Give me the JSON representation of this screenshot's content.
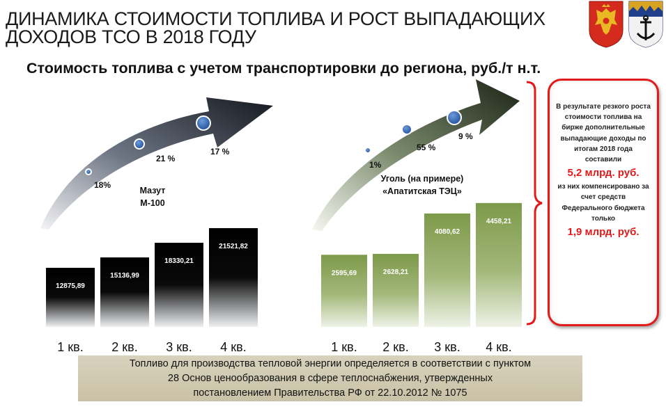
{
  "header": {
    "title_line1": "ДИНАМИКА СТОИМОСТИ ТОПЛИВА И РОСТ ВЫПАДАЮЩИХ",
    "title_line2": "ДОХОДОВ ТСО В 2018 ГОДУ",
    "subtitle": "Стоимость топлива с учетом транспортировки до региона, руб./т н.т."
  },
  "emblems": [
    "russia-coat-of-arms",
    "murmansk-oblast-coat-of-arms"
  ],
  "colors": {
    "accent_red": "#e21a1a",
    "navy": "#1f3f73",
    "green": "#7d9a4a",
    "footer_bg": "#d3ccb4"
  },
  "chart_data": [
    {
      "type": "bar",
      "title": "",
      "series_label_line1": "Мазут",
      "series_label_line2": "М-100",
      "categories": [
        "1 кв.",
        "2 кв.",
        "3 кв.",
        "4 кв."
      ],
      "values": [
        12875.89,
        15136.99,
        18330.21,
        21521.82
      ],
      "value_labels": [
        "12875,89",
        "15136,99",
        "18330,21",
        "21521,82"
      ],
      "growth_labels": [
        "18%",
        "21 %",
        "17 %"
      ],
      "ylim": [
        0,
        24000
      ],
      "bar_color": "#000000"
    },
    {
      "type": "bar",
      "title": "",
      "series_label_line1": "Уголь (на примере)",
      "series_label_line2": "«Апатитская ТЭЦ»",
      "categories": [
        "1 кв.",
        "2 кв.",
        "3 кв.",
        "4 кв."
      ],
      "values": [
        2595.69,
        2628.21,
        4080.62,
        4458.21
      ],
      "value_labels": [
        "2595,69",
        "2628,21",
        "4080,62",
        "4458,21"
      ],
      "growth_labels": [
        "1%",
        "55 %",
        "9 %"
      ],
      "ylim": [
        0,
        5000
      ],
      "bar_color": "#7d9a4a"
    }
  ],
  "callout": {
    "text1": "В результате резкого роста стоимости топлива на бирже дополнительные выпадающие доходы по итогам 2018 года составили",
    "amount1": "5,2 млрд. руб.",
    "text2": "из них компенсировано за счет средств Федерального бюджета только",
    "amount2": "1,9 млрд. руб."
  },
  "footer": {
    "line1": "Топливо для производства тепловой энергии  определяется в соответствии с пунктом",
    "line2": "28 Основ ценообразования в сфере теплоснабжения, утвержденных",
    "line3": "постановлением Правительства РФ от 22.10.2012 № 1075"
  }
}
